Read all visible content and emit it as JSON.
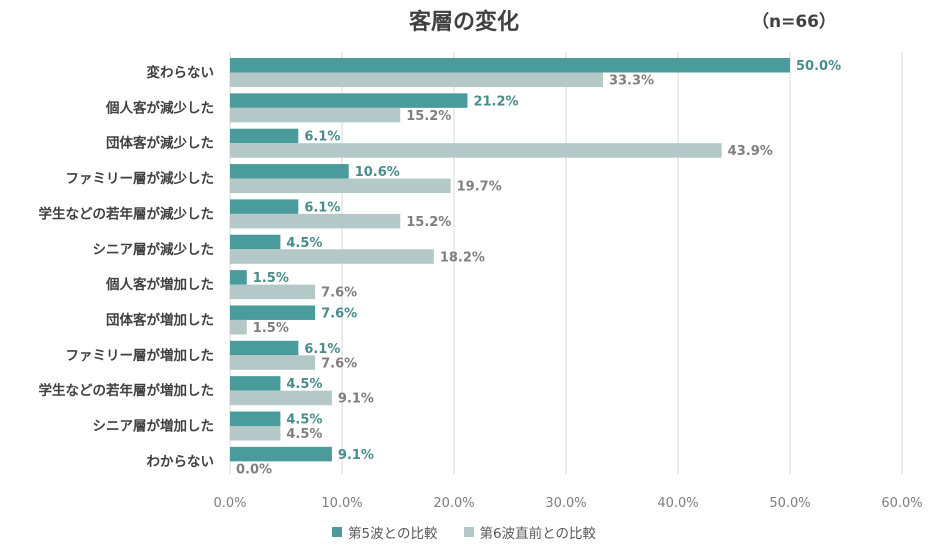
{
  "chart_data": {
    "type": "bar",
    "orientation": "horizontal",
    "title": "客層の変化",
    "subtitle": "（n=66）",
    "categories": [
      "変わらない",
      "個人客が減少した",
      "団体客が減少した",
      "ファミリー層が減少した",
      "学生などの若年層が減少した",
      "シニア層が減少した",
      "個人客が増加した",
      "団体客が増加した",
      "ファミリー層が増加した",
      "学生などの若年層が増加した",
      "シニア層が増加した",
      "わからない"
    ],
    "series": [
      {
        "name": "第5波との比較",
        "color": "#4a9b9b",
        "values": [
          50.0,
          21.2,
          6.1,
          10.6,
          6.1,
          4.5,
          1.5,
          7.6,
          6.1,
          4.5,
          4.5,
          9.1
        ],
        "labels": [
          "50.0%",
          "21.2%",
          "6.1%",
          "10.6%",
          "6.1%",
          "4.5%",
          "1.5%",
          "7.6%",
          "6.1%",
          "4.5%",
          "4.5%",
          "9.1%"
        ]
      },
      {
        "name": "第6波直前との比較",
        "color": "#b4c8c8",
        "values": [
          33.3,
          15.2,
          43.9,
          19.7,
          15.2,
          18.2,
          7.6,
          1.5,
          7.6,
          9.1,
          4.5,
          0.0
        ],
        "labels": [
          "33.3%",
          "15.2%",
          "43.9%",
          "19.7%",
          "15.2%",
          "18.2%",
          "7.6%",
          "1.5%",
          "7.6%",
          "9.1%",
          "4.5%",
          "0.0%"
        ]
      }
    ],
    "xlim": [
      0,
      60
    ],
    "xticks": [
      "0.0%",
      "10.0%",
      "20.0%",
      "30.0%",
      "40.0%",
      "50.0%",
      "60.0%"
    ],
    "grid": true,
    "legend_position": "bottom"
  }
}
